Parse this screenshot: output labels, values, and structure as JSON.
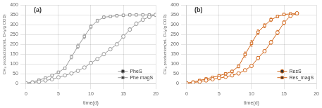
{
  "chart_data": [
    {
      "type": "line",
      "title": "(a)",
      "x_label": "time(d)",
      "y_label": "CH₄ production(mL CH₄/g COD)",
      "xlim": [
        0,
        20
      ],
      "ylim": [
        0,
        400
      ],
      "xticks": [
        0,
        5,
        10,
        15,
        20
      ],
      "yticks": [
        0,
        50,
        100,
        150,
        200,
        250,
        300,
        350,
        400
      ],
      "grid": true,
      "legend": "lower right",
      "x": [
        0,
        1,
        2,
        3,
        4,
        5,
        6,
        7,
        8,
        9,
        10,
        11,
        12,
        13,
        14,
        15,
        16,
        17,
        18,
        19,
        20
      ],
      "series": [
        {
          "name": "PheS",
          "color": "#999999",
          "marker": "circle",
          "line_style": "solid",
          "values": [
            2,
            5,
            10,
            16,
            22,
            32,
            42,
            52,
            65,
            82,
            105,
            125,
            150,
            175,
            200,
            240,
            275,
            305,
            325,
            340,
            350
          ],
          "yerr": [
            1,
            2,
            2,
            2,
            3,
            3,
            3,
            4,
            5,
            5,
            6,
            6,
            7,
            8,
            8,
            9,
            9,
            9,
            8,
            7,
            7
          ]
        },
        {
          "name": "Phe magS",
          "color": "#999999",
          "marker": "square",
          "line_style": "solid",
          "values": [
            2,
            8,
            18,
            28,
            42,
            58,
            78,
            135,
            190,
            240,
            290,
            320,
            338,
            342,
            346,
            348,
            350,
            350,
            350,
            350,
            350
          ],
          "yerr": [
            1,
            3,
            3,
            4,
            4,
            5,
            6,
            9,
            11,
            12,
            10,
            8,
            7,
            6,
            6,
            5,
            5,
            5,
            5,
            5,
            5
          ]
        }
      ]
    },
    {
      "type": "line",
      "title": "(b)",
      "x_label": "time(d)",
      "y_label": "CH₄ production(mL CH₄/g COD)",
      "xlim": [
        0,
        20
      ],
      "ylim": [
        0,
        400
      ],
      "xticks": [
        0,
        5,
        10,
        15,
        20
      ],
      "yticks": [
        0,
        50,
        100,
        150,
        200,
        250,
        300,
        350,
        400
      ],
      "grid": true,
      "legend": "lower right",
      "x": [
        0,
        1,
        2,
        3,
        4,
        5,
        6,
        7,
        8,
        9,
        10,
        11,
        12,
        13,
        14,
        15,
        16,
        17
      ],
      "series": [
        {
          "name": "ResS",
          "color": "#D2691E",
          "marker": "circle",
          "line_style": "solid",
          "values": [
            2,
            5,
            10,
            16,
            22,
            28,
            34,
            42,
            52,
            68,
            90,
            130,
            165,
            210,
            260,
            310,
            345,
            358
          ],
          "yerr": [
            1,
            2,
            2,
            3,
            3,
            3,
            4,
            4,
            4,
            5,
            6,
            8,
            9,
            10,
            11,
            10,
            8,
            7
          ]
        },
        {
          "name": "Res_magS",
          "color": "#D2691E",
          "marker": "square",
          "line_style": "solid",
          "values": [
            2,
            8,
            16,
            24,
            32,
            40,
            50,
            62,
            88,
            148,
            205,
            262,
            295,
            325,
            342,
            352,
            355,
            356
          ],
          "yerr": [
            1,
            3,
            3,
            4,
            4,
            5,
            5,
            6,
            8,
            13,
            15,
            12,
            10,
            9,
            7,
            6,
            5,
            5
          ]
        }
      ]
    }
  ]
}
